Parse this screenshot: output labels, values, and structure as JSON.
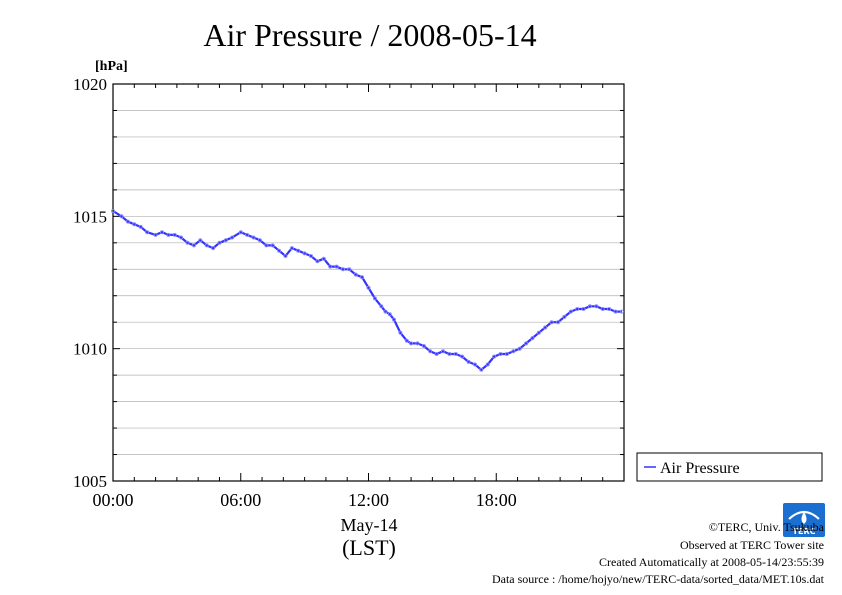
{
  "chart_data": {
    "type": "line",
    "title": "Air Pressure / 2008-05-14",
    "ylabel": "[hPa]",
    "xlabel_date": "May-14",
    "xlabel_tz": "(LST)",
    "ylim": [
      1005,
      1020
    ],
    "xlim_hours": [
      0,
      24
    ],
    "y_ticks": [
      "1020",
      "1015",
      "1010",
      "1005"
    ],
    "y_tick_values": [
      1020,
      1015,
      1010,
      1005
    ],
    "x_ticks": [
      "00:00",
      "06:00",
      "12:00",
      "18:00"
    ],
    "x_tick_values": [
      0,
      6,
      12,
      18
    ],
    "grid": true,
    "legend_position": "right-bottom",
    "series": [
      {
        "name": "Air Pressure",
        "color": "#3333ff",
        "x_hours": [
          0.0,
          0.4,
          0.7,
          1.0,
          1.3,
          1.6,
          2.0,
          2.3,
          2.6,
          2.9,
          3.2,
          3.5,
          3.8,
          4.1,
          4.4,
          4.7,
          5.0,
          5.3,
          5.6,
          6.0,
          6.3,
          6.6,
          6.9,
          7.2,
          7.5,
          7.8,
          8.1,
          8.4,
          8.7,
          9.0,
          9.3,
          9.6,
          9.9,
          10.2,
          10.5,
          10.8,
          11.1,
          11.4,
          11.7,
          12.0,
          12.3,
          12.6,
          12.8,
          13.0,
          13.2,
          13.5,
          13.8,
          14.0,
          14.3,
          14.6,
          14.9,
          15.2,
          15.5,
          15.8,
          16.1,
          16.4,
          16.7,
          17.0,
          17.3,
          17.6,
          17.9,
          18.2,
          18.5,
          18.8,
          19.1,
          19.4,
          19.7,
          20.0,
          20.3,
          20.6,
          20.9,
          21.2,
          21.5,
          21.8,
          22.1,
          22.4,
          22.7,
          23.0,
          23.3,
          23.6,
          23.9
        ],
        "values": [
          1015.2,
          1015.0,
          1014.8,
          1014.7,
          1014.6,
          1014.4,
          1014.3,
          1014.4,
          1014.3,
          1014.3,
          1014.2,
          1014.0,
          1013.9,
          1014.1,
          1013.9,
          1013.8,
          1014.0,
          1014.1,
          1014.2,
          1014.4,
          1014.3,
          1014.2,
          1014.1,
          1013.9,
          1013.9,
          1013.7,
          1013.5,
          1013.8,
          1013.7,
          1013.6,
          1013.5,
          1013.3,
          1013.4,
          1013.1,
          1013.1,
          1013.0,
          1013.0,
          1012.8,
          1012.7,
          1012.3,
          1011.9,
          1011.6,
          1011.4,
          1011.3,
          1011.1,
          1010.6,
          1010.3,
          1010.2,
          1010.2,
          1010.1,
          1009.9,
          1009.8,
          1009.9,
          1009.8,
          1009.8,
          1009.7,
          1009.5,
          1009.4,
          1009.2,
          1009.4,
          1009.7,
          1009.8,
          1009.8,
          1009.9,
          1010.0,
          1010.2,
          1010.4,
          1010.6,
          1010.8,
          1011.0,
          1011.0,
          1011.2,
          1011.4,
          1011.5,
          1011.5,
          1011.6,
          1011.6,
          1011.5,
          1011.5,
          1011.4,
          1011.4
        ]
      }
    ]
  },
  "footer": {
    "copyright": "©TERC, Univ. Tsukuba",
    "observed": "Observed at TERC Tower site",
    "created": "Created Automatically at 2008-05-14/23:55:39",
    "source": "Data source : /home/hojyo/new/TERC-data/sorted_data/MET.10s.dat",
    "logo_text": "TERC",
    "logo_color": "#1a6fd1"
  }
}
